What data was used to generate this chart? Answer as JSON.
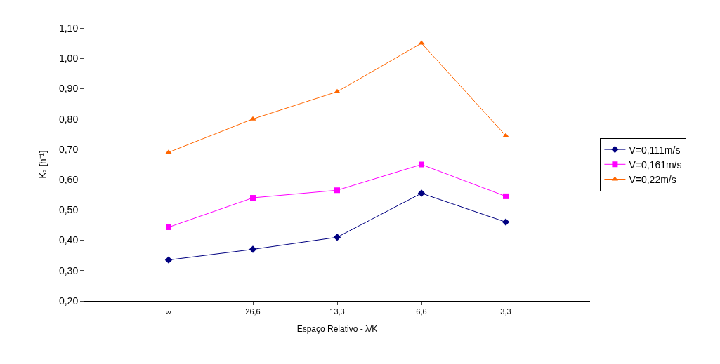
{
  "chart_data": {
    "type": "line",
    "xlabel": "Espaço Relativo - λ/K",
    "ylabel": "K₂ [h⁻¹]",
    "categories": [
      null,
      "∞",
      "26,6",
      "13,3",
      "6,6",
      "3,3",
      null
    ],
    "series": [
      {
        "name": "V=0,111m/s",
        "color": "#000080",
        "marker": "diamond",
        "values": [
          null,
          0.335,
          0.37,
          0.41,
          0.555,
          0.46,
          null
        ]
      },
      {
        "name": "V=0,161m/s",
        "color": "#ff00ff",
        "marker": "square",
        "values": [
          null,
          0.443,
          0.54,
          0.565,
          0.65,
          0.545,
          null
        ]
      },
      {
        "name": "V=0,22m/s",
        "color": "#ff6600",
        "marker": "triangle",
        "values": [
          null,
          0.69,
          0.8,
          0.89,
          1.05,
          0.745,
          null
        ]
      }
    ],
    "ylim": [
      0.2,
      1.1
    ],
    "yticks": [
      {
        "value": 0.2,
        "label": "0,20"
      },
      {
        "value": 0.3,
        "label": "0,30"
      },
      {
        "value": 0.4,
        "label": "0,40"
      },
      {
        "value": 0.5,
        "label": "0,50"
      },
      {
        "value": 0.6,
        "label": "0,60"
      },
      {
        "value": 0.7,
        "label": "0,70"
      },
      {
        "value": 0.8,
        "label": "0,80"
      },
      {
        "value": 0.9,
        "label": "0,90"
      },
      {
        "value": 1.0,
        "label": "1,00"
      },
      {
        "value": 1.1,
        "label": "1,10"
      }
    ],
    "legend": "right",
    "grid": false,
    "line_style": "solid"
  }
}
